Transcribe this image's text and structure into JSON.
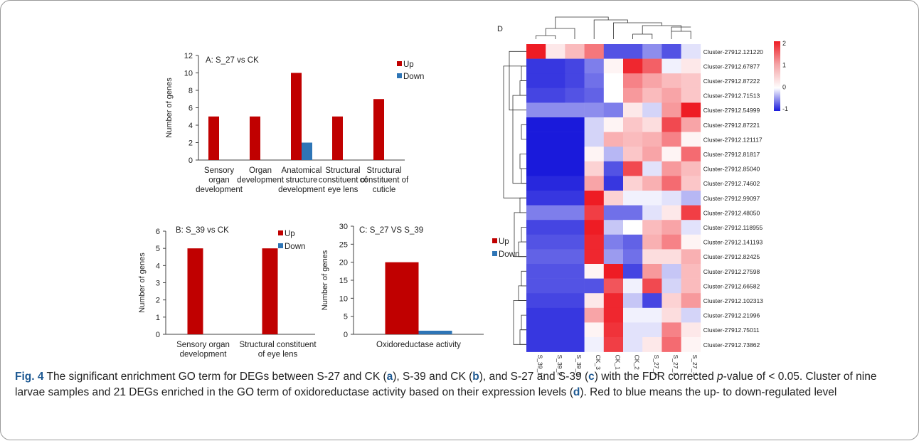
{
  "caption": {
    "fig_label": "Fig. 4",
    "t1": " The significant enrichment GO term for DEGs between S-27 and CK (",
    "la": "a",
    "t2": "), S-39 and CK (",
    "lb": "b",
    "t3": "), and S-27 and S-39 (",
    "lc": "c",
    "t4": ") with the FDR corrected ",
    "p_italic": "p",
    "t5": "-value of < 0.05. Cluster of nine larvae samples and 21 DEGs enriched in the GO term of oxidoreductase activity based on their expression levels (",
    "ld": "d",
    "t6": "). Red to blue means the up- to down-regulated level"
  },
  "colors": {
    "up": "#c00000",
    "down": "#2e75b6",
    "heat_high": "#ee1c24",
    "heat_low": "#1a1adb",
    "heat_mid": "#ffffff",
    "caption_accent": "#1f5a93"
  },
  "chart_data": [
    {
      "panel": "A",
      "type": "bar",
      "title": "A:  S_27 vs CK",
      "ylabel": "Number of genes",
      "ylim": [
        0,
        12
      ],
      "yticks": [
        0,
        2,
        4,
        6,
        8,
        10,
        12
      ],
      "categories": [
        [
          "Sensory",
          "organ",
          "development"
        ],
        [
          "Organ",
          "development"
        ],
        [
          "Anatomical",
          "structure",
          "development"
        ],
        [
          "Structural",
          "constituent of",
          "eye lens"
        ],
        [
          "Structural",
          "constituent of",
          "cuticle"
        ]
      ],
      "series": [
        {
          "name": "Up",
          "values": [
            5,
            5,
            10,
            5,
            7
          ]
        },
        {
          "name": "Down",
          "values": [
            0,
            0,
            2,
            0,
            0
          ]
        }
      ],
      "legend": "top-right"
    },
    {
      "panel": "B",
      "type": "bar",
      "title": "B:  S_39 vs CK",
      "ylabel": "Number of genes",
      "ylim": [
        0,
        6
      ],
      "yticks": [
        0,
        1,
        2,
        3,
        4,
        5,
        6
      ],
      "categories": [
        [
          "Sensory organ",
          "development"
        ],
        [
          "Structural constituent",
          "of eye lens"
        ]
      ],
      "series": [
        {
          "name": "Up",
          "values": [
            5,
            5
          ]
        },
        {
          "name": "Down",
          "values": [
            0,
            0
          ]
        }
      ],
      "legend": "top-right"
    },
    {
      "panel": "C",
      "type": "bar",
      "title": "C:  S_27 VS S_39",
      "ylabel": "Number of genes",
      "ylim": [
        0,
        30
      ],
      "yticks": [
        0,
        5,
        10,
        15,
        20,
        25,
        30
      ],
      "categories": [
        [
          "Oxidoreductase activity"
        ]
      ],
      "series": [
        {
          "name": "Up",
          "values": [
            20
          ]
        },
        {
          "name": "Down",
          "values": [
            1
          ]
        }
      ],
      "legend": "right"
    },
    {
      "panel": "D",
      "type": "heatmap",
      "title": "D",
      "columns": [
        "S_39_1",
        "S_39_2",
        "S_39_3",
        "CK_3",
        "CK_1",
        "CK_2",
        "S_27_2",
        "S_27_1",
        "S_27_3"
      ],
      "rows": [
        "Cluster-27912.121220",
        "Cluster-27912.67877",
        "Cluster-27912.87222",
        "Cluster-27912.71513",
        "Cluster-27912.54999",
        "Cluster-27912.87221",
        "Cluster-27912.121117",
        "Cluster-27912.81817",
        "Cluster-27912.85040",
        "Cluster-27912.74602",
        "Cluster-27912.99097",
        "Cluster-27912.48050",
        "Cluster-27912.118955",
        "Cluster-27912.141193",
        "Cluster-27912.82425",
        "Cluster-27912.27598",
        "Cluster-27912.66582",
        "Cluster-27912.102313",
        "Cluster-27912.21996",
        "Cluster-27912.75011",
        "Cluster-27912.73862"
      ],
      "values": [
        [
          2.0,
          0.2,
          0.6,
          1.2,
          -1.2,
          -1.2,
          -0.8,
          -1.2,
          -0.2
        ],
        [
          -1.4,
          -1.4,
          -1.3,
          -0.9,
          0.1,
          1.9,
          1.4,
          -0.1,
          0.2
        ],
        [
          -1.4,
          -1.4,
          -1.3,
          -1.0,
          0.0,
          1.1,
          0.8,
          0.6,
          0.5
        ],
        [
          -1.3,
          -1.3,
          -1.2,
          -1.1,
          0.0,
          0.9,
          0.6,
          0.8,
          0.5
        ],
        [
          -0.8,
          -0.8,
          -0.8,
          -0.8,
          -0.9,
          0.2,
          -0.3,
          0.9,
          2.0
        ],
        [
          -1.6,
          -1.6,
          -1.6,
          -0.3,
          0.1,
          0.5,
          0.3,
          1.6,
          0.8
        ],
        [
          -1.6,
          -1.6,
          -1.6,
          -0.3,
          0.7,
          0.6,
          0.7,
          1.1,
          0.1
        ],
        [
          -1.6,
          -1.6,
          -1.6,
          0.1,
          -0.5,
          0.5,
          0.8,
          0.1,
          1.3
        ],
        [
          -1.6,
          -1.6,
          -1.6,
          0.4,
          -1.2,
          1.6,
          -0.2,
          0.9,
          0.6
        ],
        [
          -1.5,
          -1.5,
          -1.5,
          0.8,
          -1.4,
          0.4,
          0.7,
          1.3,
          0.5
        ],
        [
          -1.4,
          -1.4,
          -1.4,
          2.0,
          0.4,
          -0.1,
          -0.1,
          -0.2,
          -0.5
        ],
        [
          -0.9,
          -0.9,
          -0.9,
          1.7,
          -1.0,
          -1.0,
          -0.2,
          0.2,
          1.7
        ],
        [
          -1.3,
          -1.3,
          -1.3,
          2.0,
          -0.4,
          0.0,
          0.6,
          0.8,
          -0.2
        ],
        [
          -1.2,
          -1.2,
          -1.2,
          1.9,
          -0.9,
          -1.1,
          0.7,
          1.1,
          0.1
        ],
        [
          -1.1,
          -1.1,
          -1.1,
          1.9,
          -0.7,
          -1.0,
          0.3,
          0.3,
          0.7
        ],
        [
          -1.2,
          -1.2,
          -1.2,
          0.1,
          2.0,
          -1.3,
          0.9,
          -0.4,
          0.6
        ],
        [
          -1.2,
          -1.2,
          -1.2,
          -1.2,
          1.5,
          -0.1,
          1.6,
          -0.3,
          0.6
        ],
        [
          -1.3,
          -1.3,
          -1.3,
          0.2,
          1.9,
          -0.4,
          -1.3,
          0.4,
          0.9
        ],
        [
          -1.4,
          -1.4,
          -1.4,
          0.8,
          1.9,
          -0.1,
          -0.1,
          0.3,
          -0.3
        ],
        [
          -1.4,
          -1.4,
          -1.4,
          0.1,
          1.8,
          -0.2,
          -0.2,
          1.1,
          0.2
        ],
        [
          -1.4,
          -1.4,
          -1.4,
          -0.1,
          1.7,
          -0.2,
          0.2,
          1.3,
          0.1
        ]
      ],
      "scale": {
        "min": -1,
        "max": 2,
        "ticks": [
          2,
          1,
          0,
          -1
        ]
      }
    }
  ]
}
